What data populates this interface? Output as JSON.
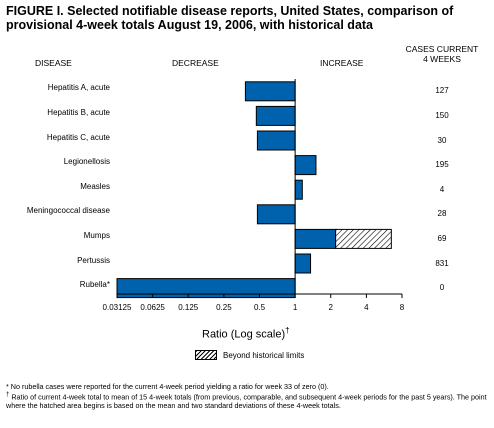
{
  "title": "FIGURE I. Selected notifiable disease reports, United States, comparison of provisional 4-week totals August 19, 2006, with historical data",
  "headers": {
    "disease": "DISEASE",
    "decrease": "DECREASE",
    "increase": "INCREASE",
    "cases_line1": "CASES CURRENT",
    "cases_line2": "4 WEEKS"
  },
  "axis_title": "Ratio (Log scale)",
  "axis_title_mark": "†",
  "legend_label": "Beyond historical limits",
  "footnotes": {
    "star": "No rubella cases were reported for the current 4-week period yielding a ratio for week 33 of zero (0).",
    "dagger": "Ratio of current 4-week total to mean of 15 4-week totals (from previous, comparable, and subsequent 4-week periods for the past 5 years). The point where the hatched area begins is based on the mean and two standard deviations of these 4-week totals."
  },
  "colors": {
    "bar": "#0061ac",
    "edge": "#000000"
  },
  "chart_data": {
    "type": "bar",
    "orientation": "horizontal",
    "scale": "log2",
    "baseline": 1,
    "xlim": [
      0.03125,
      8
    ],
    "tick_labels": [
      "0.03125",
      "0.0625",
      "0.125",
      "0.25",
      "0.5",
      "1",
      "2",
      "4",
      "8"
    ],
    "tick_values": [
      0.03125,
      0.0625,
      0.125,
      0.25,
      0.5,
      1,
      2,
      4,
      8
    ],
    "categories": [
      "Hepatitis A, acute",
      "Hepatitis B, acute",
      "Hepatitis C, acute",
      "Legionellosis",
      "Measles",
      "Meningococcal disease",
      "Mumps",
      "Pertussis",
      "Rubella*"
    ],
    "values": [
      0.38,
      0.47,
      0.48,
      1.5,
      1.15,
      0.48,
      6.5,
      1.35,
      0.03125
    ],
    "beyond_limits_from": [
      null,
      null,
      null,
      null,
      null,
      null,
      2.2,
      null,
      null
    ],
    "cases_current_4_weeks": [
      "127",
      "150",
      "30",
      "195",
      "4",
      "28",
      "69",
      "831",
      "0"
    ]
  }
}
